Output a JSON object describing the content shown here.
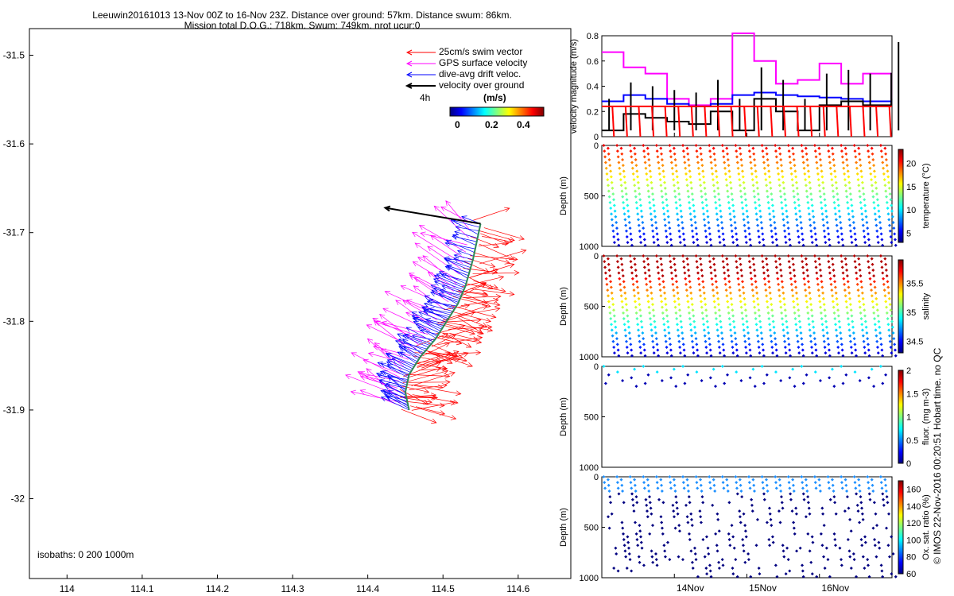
{
  "header": {
    "line1": "Leeuwin20161013 13-Nov 00Z to 16-Nov 23Z. Distance over ground: 57km. Distance swum: 86km.",
    "line2": "Mission total D.O.G.: 718km. Swum: 749km. nrot ucur:0"
  },
  "map": {
    "legend": [
      "25cm/s swim vector",
      "GPS surface velocity",
      "dive-avg drift veloc.",
      "velocity over ground"
    ],
    "legend_colors": [
      "#ff0000",
      "#ff00ff",
      "#0000ff",
      "#000000"
    ],
    "scale_label": "4h",
    "colorbar_title": "(m/s)",
    "colorbar_ticks": [
      "0",
      "0.2",
      "0.4"
    ],
    "isobaths": "isobaths: 0   200  1000m"
  },
  "side": {
    "colorbar_labels": [
      "temperature (°C)",
      "salinity",
      "fluor. (mg m-3)",
      "Ox. sat. ratio (%)"
    ],
    "temp_ticks": [
      "20",
      "15",
      "10",
      "5"
    ],
    "sal_ticks": [
      "35.5",
      "35",
      "34.5"
    ],
    "fluor_ticks": [
      "2",
      "1.5",
      "1",
      "0.5",
      "0"
    ],
    "ox_ticks": [
      "160",
      "140",
      "120",
      "100",
      "80",
      "60"
    ]
  },
  "watermark": "© IMOS 22-Nov-2016 00:20:51 Hobart time. no QC",
  "chart_data": [
    {
      "type": "scatter",
      "name": "track map",
      "xlabel": "",
      "ylabel": "",
      "xlim": [
        113.95,
        114.67
      ],
      "ylim": [
        -32.09,
        -31.47
      ],
      "xticks": [
        "114",
        "114.1",
        "114.2",
        "114.3",
        "114.4",
        "114.5",
        "114.6"
      ],
      "yticks": [
        "-31.5",
        "-31.6",
        "-31.7",
        "-31.8",
        "-31.9",
        "-32"
      ],
      "track_lon": [
        114.455,
        114.45,
        114.455,
        114.47,
        114.49,
        114.505,
        114.52,
        114.53,
        114.54,
        114.55
      ],
      "track_lat": [
        -31.9,
        -31.88,
        -31.86,
        -31.84,
        -31.82,
        -31.8,
        -31.78,
        -31.76,
        -31.73,
        -31.69
      ]
    },
    {
      "type": "line",
      "name": "velocity panel",
      "ylabel": "velocity magnitude (m/s)",
      "ylim": [
        0,
        0.8
      ],
      "yticks": [
        "0",
        "0.2",
        "0.4",
        "0.6",
        "0.8"
      ],
      "xticks": [
        "14Nov",
        "15Nov",
        "16Nov"
      ],
      "x": [
        13.0,
        13.3,
        13.6,
        13.9,
        14.2,
        14.5,
        14.8,
        15.1,
        15.4,
        15.7,
        16.0,
        16.3,
        16.6,
        16.99
      ],
      "series": [
        {
          "name": "GPS surface velocity",
          "color": "#ff00ff",
          "values": [
            0.67,
            0.55,
            0.5,
            0.3,
            0.25,
            0.3,
            0.82,
            0.6,
            0.42,
            0.45,
            0.58,
            0.42,
            0.5,
            0.3
          ]
        },
        {
          "name": "dive-avg drift veloc.",
          "color": "#0000ff",
          "values": [
            0.28,
            0.33,
            0.3,
            0.26,
            0.24,
            0.26,
            0.33,
            0.35,
            0.33,
            0.32,
            0.31,
            0.3,
            0.28,
            0.26
          ]
        },
        {
          "name": "velocity over ground",
          "color": "#000000",
          "values": [
            0.05,
            0.18,
            0.15,
            0.12,
            0.1,
            0.2,
            0.05,
            0.3,
            0.2,
            0.05,
            0.25,
            0.28,
            0.25,
            0.5
          ]
        },
        {
          "name": "25cm/s swim vector",
          "color": "#ff0000",
          "values": [
            0.24,
            0.24,
            0.24,
            0.24,
            0.24,
            0.24,
            0.24,
            0.24,
            0.24,
            0.24,
            0.24,
            0.24,
            0.24,
            0.24
          ]
        }
      ]
    },
    {
      "type": "scatter",
      "name": "temperature section",
      "ylabel": "Depth (m)",
      "ylim": [
        1000,
        0
      ],
      "yticks": [
        "0",
        "500",
        "1000"
      ],
      "clim": [
        3,
        23
      ],
      "colorbar": "temperature (°C)"
    },
    {
      "type": "scatter",
      "name": "salinity section",
      "ylabel": "Depth (m)",
      "ylim": [
        1000,
        0
      ],
      "yticks": [
        "0",
        "500",
        "1000"
      ],
      "clim": [
        34.3,
        35.9
      ],
      "colorbar": "salinity"
    },
    {
      "type": "scatter",
      "name": "fluorescence section",
      "ylabel": "Depth (m)",
      "ylim": [
        1000,
        0
      ],
      "yticks": [
        "0",
        "500",
        "1000"
      ],
      "clim": [
        0,
        2
      ],
      "colorbar": "fluor. (mg m-3)"
    },
    {
      "type": "scatter",
      "name": "oxygen section",
      "ylabel": "Depth (m)",
      "ylim": [
        1000,
        0
      ],
      "yticks": [
        "0",
        "500",
        "1000"
      ],
      "clim": [
        60,
        170
      ],
      "colorbar": "Ox. sat. ratio (%)",
      "xticks": [
        "14Nov",
        "15Nov",
        "16Nov"
      ]
    }
  ]
}
